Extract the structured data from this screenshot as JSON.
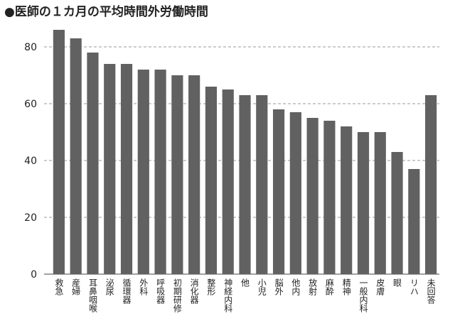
{
  "chart_data": {
    "type": "bar",
    "title": "●医師の１カ月の平均時間外労働時間",
    "categories": [
      "救急",
      "産婦",
      "耳鼻咽喉",
      "泌尿",
      "循環器",
      "外科",
      "呼吸器",
      "初期研修",
      "消化器",
      "整形",
      "神経内科",
      "他",
      "小児",
      "脳外",
      "他内",
      "放射",
      "麻酔",
      "精神",
      "一般内科",
      "皮膚",
      "眼",
      "リハ",
      "未回答"
    ],
    "values": [
      86,
      83,
      78,
      74,
      74,
      72,
      72,
      70,
      70,
      66,
      65,
      63,
      63,
      58,
      57,
      55,
      54,
      52,
      50,
      50,
      43,
      37,
      63
    ],
    "color": "#616161",
    "ylim": [
      0,
      88
    ],
    "yticks": [
      0,
      20,
      40,
      60,
      80
    ],
    "grid": true
  }
}
